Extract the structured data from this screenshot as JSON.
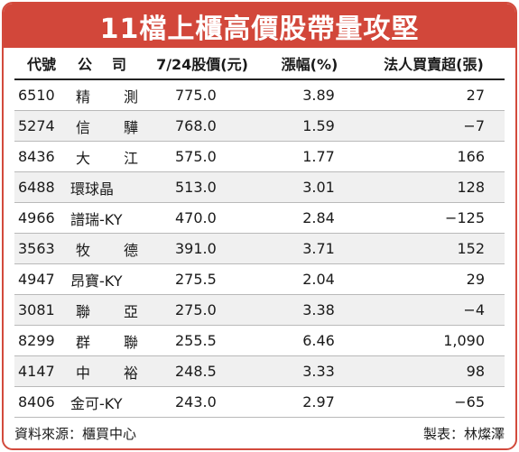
{
  "title": "11檔上櫃高價股帶量攻堅",
  "headers": {
    "code": "代號",
    "name": "公司",
    "price": "7/24股價(元)",
    "change": "漲幅(%)",
    "net": "法人買賣超(張)"
  },
  "rows": [
    {
      "code": "6510",
      "name": "精測",
      "price": "775.0",
      "change": "3.89",
      "net": "27"
    },
    {
      "code": "5274",
      "name": "信驊",
      "price": "768.0",
      "change": "1.59",
      "net": "−7"
    },
    {
      "code": "8436",
      "name": "大江",
      "price": "575.0",
      "change": "1.77",
      "net": "166"
    },
    {
      "code": "6488",
      "name": "環球晶",
      "price": "513.0",
      "change": "3.01",
      "net": "128"
    },
    {
      "code": "4966",
      "name": "譜瑞-KY",
      "price": "470.0",
      "change": "2.84",
      "net": "−125"
    },
    {
      "code": "3563",
      "name": "牧德",
      "price": "391.0",
      "change": "3.71",
      "net": "152"
    },
    {
      "code": "4947",
      "name": "昂寶-KY",
      "price": "275.5",
      "change": "2.04",
      "net": "29"
    },
    {
      "code": "3081",
      "name": "聯亞",
      "price": "275.0",
      "change": "3.38",
      "net": "−4"
    },
    {
      "code": "8299",
      "name": "群聯",
      "price": "255.5",
      "change": "6.46",
      "net": "1,090"
    },
    {
      "code": "4147",
      "name": "中裕",
      "price": "248.5",
      "change": "3.33",
      "net": "98"
    },
    {
      "code": "8406",
      "name": "金可-KY",
      "price": "243.0",
      "change": "2.97",
      "net": "−65"
    }
  ],
  "footer": {
    "source": "資料來源：櫃買中心",
    "credit": "製表：林燦澤"
  },
  "colors": {
    "accent": "#d2473a",
    "row_alt": "#f0f0f0"
  }
}
